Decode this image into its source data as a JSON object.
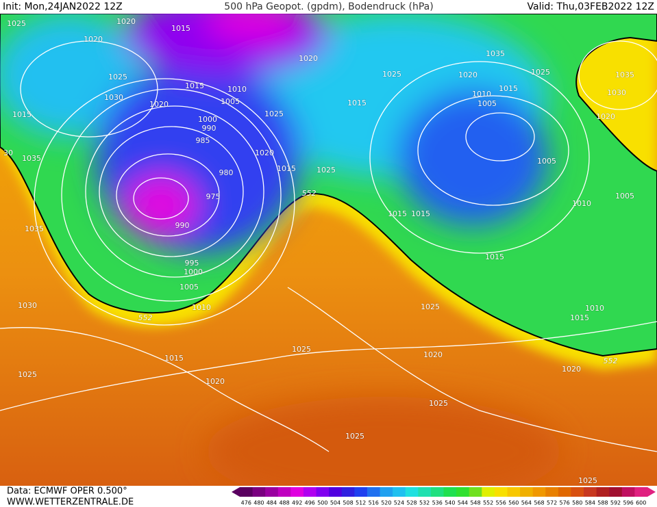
{
  "header": {
    "init": "Init: Mon,24JAN2022 12Z",
    "title": "500 hPa Geopot. (gpdm), Bodendruck (hPa)",
    "valid": "Valid: Thu,03FEB2022 12Z"
  },
  "isobar_labels": [
    1025,
    1020,
    1015,
    1020,
    1025,
    1030,
    1015,
    1010,
    1005,
    1020,
    1015,
    1000,
    990,
    985,
    980,
    975,
    990,
    995,
    1000,
    1005,
    1010,
    552,
    1030,
    1035,
    1035,
    30,
    1025,
    1020,
    1015,
    1025,
    552,
    1020,
    1015,
    1025,
    1020,
    1035,
    1010,
    1015,
    1005,
    1025,
    1035,
    1030,
    1020,
    1005,
    1010,
    1005,
    1015,
    1015,
    1015,
    1025,
    1015,
    1010,
    1020,
    552,
    1020,
    1025,
    1015,
    1020,
    1025,
    1025,
    1025,
    1025
  ],
  "scale": {
    "labels": [
      476,
      480,
      484,
      488,
      492,
      496,
      500,
      504,
      508,
      512,
      516,
      520,
      524,
      528,
      532,
      536,
      540,
      544,
      548,
      552,
      556,
      560,
      564,
      568,
      572,
      576,
      580,
      584,
      588,
      592,
      596,
      600
    ],
    "colors": [
      "#5a0060",
      "#7a0080",
      "#9a00a0",
      "#c000c0",
      "#e000e0",
      "#b000f0",
      "#8000f0",
      "#5000e0",
      "#3020e0",
      "#2040f0",
      "#2070f0",
      "#20a0f0",
      "#20c0f0",
      "#20e0e0",
      "#20e0b0",
      "#20e080",
      "#20e050",
      "#30e030",
      "#70e020",
      "#e0f000",
      "#f8e000",
      "#f8c800",
      "#f0b000",
      "#f09800",
      "#e88000",
      "#e06800",
      "#d85010",
      "#c83820",
      "#b02020",
      "#a01030",
      "#c01060",
      "#e02080"
    ]
  },
  "footer": {
    "data": "Data: ECMWF OPER 0.500°",
    "site": "WWW.WETTERZENTRALE.DE"
  }
}
